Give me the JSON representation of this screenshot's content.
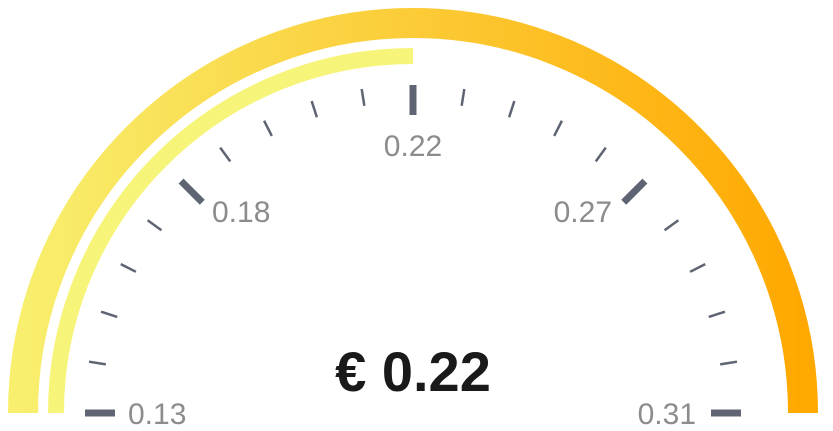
{
  "gauge": {
    "min": 0.13,
    "max": 0.31,
    "value": 0.22,
    "display_value": "€ 0.22",
    "major_tick_labels": [
      "0.13",
      "0.18",
      "0.22",
      "0.27",
      "0.31"
    ],
    "minor_ticks_between_majors": 4,
    "colors": {
      "outer_arc_start": "#f8ef6e",
      "outer_arc_end": "#ffa800",
      "value_arc": "#f7f47a",
      "tick": "#5f6473",
      "label": "#8c8c8c",
      "value_text": "#1a1a1a"
    }
  }
}
